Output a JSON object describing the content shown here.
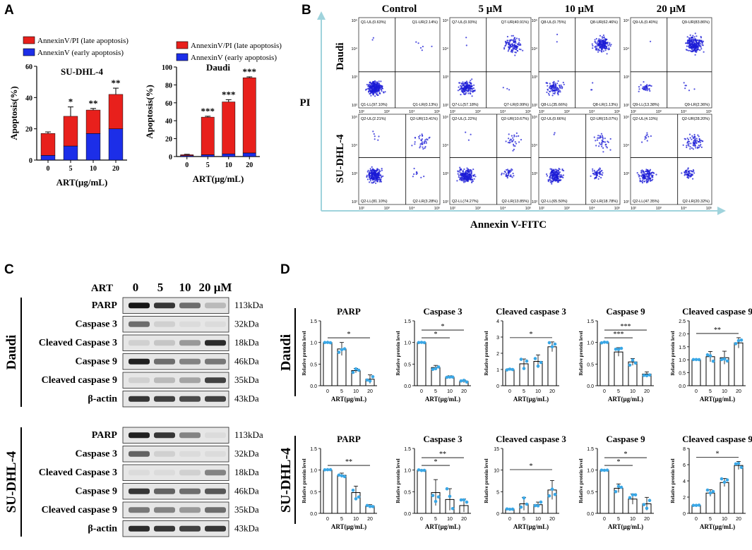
{
  "panels": {
    "A": "A",
    "B": "B",
    "C": "C",
    "D": "D"
  },
  "panel_a": {
    "legend_late": "AnnexinV/PI (late apoptosis)",
    "legend_early": "AnnexinV (early apoptosis)",
    "colors": {
      "late": "#e8201c",
      "early": "#1c2ee8"
    },
    "chart_data": [
      {
        "type": "bar",
        "stacked": true,
        "title": "SU-DHL-4",
        "xlabel": "ART(μg/mL)",
        "ylabel": "Apoptosis(%)",
        "categories": [
          "0",
          "5",
          "10",
          "20"
        ],
        "ylim": [
          0,
          60
        ],
        "yticks": [
          "0",
          "20",
          "40",
          "60"
        ],
        "series": [
          {
            "name": "AnnexinV (early apoptosis)",
            "values": [
              3,
              9,
              17,
              20
            ]
          },
          {
            "name": "AnnexinV/PI (late apoptosis)",
            "values": [
              14,
              19,
              15,
              22
            ]
          }
        ],
        "totals": [
          17,
          28,
          32,
          42
        ],
        "errors": [
          1,
          6,
          1,
          4
        ],
        "significance": [
          "",
          "*",
          "**",
          "**"
        ]
      },
      {
        "type": "bar",
        "stacked": true,
        "title": "Daudi",
        "xlabel": "ART(μg/mL)",
        "ylabel": "Apoptosis(%)",
        "categories": [
          "0",
          "5",
          "10",
          "20"
        ],
        "ylim": [
          0,
          100
        ],
        "yticks": [
          "0",
          "20",
          "40",
          "60",
          "80",
          "100"
        ],
        "series": [
          {
            "name": "AnnexinV (early apoptosis)",
            "values": [
              1,
              2,
              3,
              4
            ]
          },
          {
            "name": "AnnexinV/PI (late apoptosis)",
            "values": [
              1,
              42,
              58,
              84
            ]
          }
        ],
        "totals": [
          2,
          44,
          61,
          88
        ],
        "errors": [
          0.5,
          1,
          2.5,
          1
        ],
        "significance": [
          "",
          "***",
          "***",
          "***"
        ]
      }
    ]
  },
  "panel_b": {
    "columns": [
      "Control",
      "5 μM",
      "10 μM",
      "20 μM"
    ],
    "rows": [
      "Daudi",
      "SU-DHL-4"
    ],
    "y_axis": "PI",
    "x_axis": "Annexin V-FITC",
    "quadrants": [
      [
        {
          "ul": "Q1-UL(0.63%)",
          "ur": "Q1-UR(2.14%)",
          "ll": "Q1-LL(97.10%)",
          "lr": "Q1-LR(0.13%)"
        },
        {
          "ul": "Q7-UL(0.93%)",
          "ur": "Q7-UR(40.91%)",
          "ll": "Q7-LL(57.18%)",
          "lr": "Q7-LR(0.99%)"
        },
        {
          "ul": "Q8-UL(0.75%)",
          "ur": "Q8-UR(62.46%)",
          "ll": "Q8-LL(35.66%)",
          "lr": "Q8-LR(1.13%)"
        },
        {
          "ul": "Q9-UL(0.40%)",
          "ur": "Q9-UR(83.86%)",
          "ll": "Q9-LL(13.38%)",
          "lr": "Q9-LR(2.36%)"
        }
      ],
      [
        {
          "ul": "Q2-UL(2.21%)",
          "ur": "Q2-UR(13.41%)",
          "ll": "Q2-LL(81.10%)",
          "lr": "Q2-LR(3.28%)"
        },
        {
          "ul": "Q2-UL(1.22%)",
          "ur": "Q2-UR(10.67%)",
          "ll": "Q2-LL(74.27%)",
          "lr": "Q2-LR(13.85%)"
        },
        {
          "ul": "Q2-UL(0.66%)",
          "ur": "Q2-UR(15.07%)",
          "ll": "Q2-LL(65.50%)",
          "lr": "Q2-LR(18.78%)"
        },
        {
          "ul": "Q2-UL(4.13%)",
          "ur": "Q2-UR(28.20%)",
          "ll": "Q2-LL(47.35%)",
          "lr": "Q2-LR(20.32%)"
        }
      ]
    ],
    "tick_labels": {
      "y": [
        "10⁵",
        "10⁴",
        "10³",
        "10²"
      ],
      "x": [
        "10²",
        "10³",
        "10⁴",
        "10⁵"
      ]
    }
  },
  "panel_c": {
    "treatment_label": "ART",
    "lanes": [
      "0",
      "5",
      "10",
      "20 μM"
    ],
    "groups": [
      {
        "name": "Daudi",
        "proteins": [
          "PARP",
          "Caspase 3",
          "Cleaved Caspase 3",
          "Caspase 9",
          "Cleaved caspase 9",
          "β-actin"
        ],
        "kda": [
          "113kDa",
          "32kDa",
          "18kDa",
          "46kDa",
          "35kDa",
          "43kDa"
        ]
      },
      {
        "name": "SU-DHL-4",
        "proteins": [
          "PARP",
          "Caspase 3",
          "Cleaved Caspase 3",
          "Caspase 9",
          "Cleaved caspase 9",
          "β-actin"
        ],
        "kda": [
          "113kDa",
          "32kDa",
          "18kDa",
          "46kDa",
          "35kDa",
          "43kDa"
        ]
      }
    ],
    "band_intensity": [
      [
        [
          0.95,
          0.8,
          0.55,
          0.2
        ],
        [
          0.55,
          0.1,
          0.05,
          0.05
        ],
        [
          0.1,
          0.15,
          0.35,
          0.85
        ],
        [
          0.9,
          0.55,
          0.45,
          0.5
        ],
        [
          0.1,
          0.2,
          0.3,
          0.75
        ],
        [
          0.8,
          0.75,
          0.7,
          0.75
        ]
      ],
      [
        [
          0.9,
          0.8,
          0.45,
          0.05
        ],
        [
          0.6,
          0.1,
          0.05,
          0.05
        ],
        [
          0.05,
          0.05,
          0.1,
          0.45
        ],
        [
          0.8,
          0.6,
          0.55,
          0.65
        ],
        [
          0.5,
          0.45,
          0.35,
          0.55
        ],
        [
          0.85,
          0.8,
          0.75,
          0.8
        ]
      ]
    ]
  },
  "panel_d": {
    "row_labels": [
      "Daudi",
      "SU-DHL-4"
    ],
    "ylabel": "Relative protein level",
    "xlabel": "ART(μg/mL)",
    "chart_data": [
      {
        "type": "bar",
        "row": "Daudi",
        "title": "PARP",
        "categories": [
          "0",
          "5",
          "10",
          "20"
        ],
        "values": [
          1.0,
          0.85,
          0.35,
          0.15
        ],
        "errors": [
          0.01,
          0.15,
          0.05,
          0.1
        ],
        "ylim": [
          0,
          1.5
        ],
        "yticks": [
          "0.0",
          "0.5",
          "1.0",
          "1.5"
        ],
        "sig": [
          {
            "from": 0,
            "to": 3,
            "label": "*"
          }
        ]
      },
      {
        "type": "bar",
        "row": "Daudi",
        "title": "Caspase 3",
        "categories": [
          "0",
          "5",
          "10",
          "20"
        ],
        "values": [
          1.0,
          0.42,
          0.2,
          0.1
        ],
        "errors": [
          0.01,
          0.05,
          0.03,
          0.03
        ],
        "ylim": [
          0,
          1.5
        ],
        "yticks": [
          "0.0",
          "0.5",
          "1.0",
          "1.5"
        ],
        "sig": [
          {
            "from": 0,
            "to": 2,
            "label": "*"
          },
          {
            "from": 0,
            "to": 3,
            "label": "*"
          }
        ]
      },
      {
        "type": "bar",
        "row": "Daudi",
        "title": "Cleaved caspase 3",
        "categories": [
          "0",
          "5",
          "10",
          "20"
        ],
        "values": [
          1.0,
          1.35,
          1.5,
          2.4
        ],
        "errors": [
          0.05,
          0.3,
          0.4,
          0.3
        ],
        "ylim": [
          0,
          4
        ],
        "yticks": [
          "0",
          "1",
          "2",
          "3",
          "4"
        ],
        "sig": [
          {
            "from": 0,
            "to": 3,
            "label": "*"
          }
        ]
      },
      {
        "type": "bar",
        "row": "Daudi",
        "title": "Caspase 9",
        "categories": [
          "0",
          "5",
          "10",
          "20"
        ],
        "values": [
          1.0,
          0.78,
          0.55,
          0.27
        ],
        "errors": [
          0.01,
          0.1,
          0.08,
          0.05
        ],
        "ylim": [
          0,
          1.5
        ],
        "yticks": [
          "0.0",
          "0.5",
          "1.0",
          "1.5"
        ],
        "sig": [
          {
            "from": 0,
            "to": 2,
            "label": "***"
          },
          {
            "from": 0,
            "to": 3,
            "label": "***"
          }
        ]
      },
      {
        "type": "bar",
        "row": "Daudi",
        "title": "Cleaved caspase 9",
        "categories": [
          "0",
          "5",
          "10",
          "20"
        ],
        "values": [
          1.0,
          1.12,
          1.08,
          1.65
        ],
        "errors": [
          0.01,
          0.2,
          0.25,
          0.2
        ],
        "ylim": [
          0,
          2.5
        ],
        "yticks": [
          "0.0",
          "0.5",
          "1.0",
          "1.5",
          "2.0",
          "2.5"
        ],
        "sig": [
          {
            "from": 0,
            "to": 3,
            "label": "**"
          }
        ]
      },
      {
        "type": "bar",
        "row": "SU-DHL-4",
        "title": "PARP",
        "categories": [
          "0",
          "5",
          "10",
          "20"
        ],
        "values": [
          1.0,
          0.88,
          0.48,
          0.17
        ],
        "errors": [
          0.01,
          0.05,
          0.15,
          0.03
        ],
        "ylim": [
          0,
          1.5
        ],
        "yticks": [
          "0.0",
          "0.5",
          "1.0",
          "1.5"
        ],
        "sig": [
          {
            "from": 0,
            "to": 3,
            "label": "**"
          }
        ]
      },
      {
        "type": "bar",
        "row": "SU-DHL-4",
        "title": "Caspase 3",
        "categories": [
          "0",
          "5",
          "10",
          "20"
        ],
        "values": [
          1.0,
          0.48,
          0.32,
          0.18
        ],
        "errors": [
          0.01,
          0.3,
          0.25,
          0.15
        ],
        "ylim": [
          0,
          1.5
        ],
        "yticks": [
          "0.0",
          "0.5",
          "1.0",
          "1.5"
        ],
        "sig": [
          {
            "from": 0,
            "to": 2,
            "label": "*"
          },
          {
            "from": 0,
            "to": 3,
            "label": "**"
          }
        ]
      },
      {
        "type": "bar",
        "row": "SU-DHL-4",
        "title": "Cleaved caspase 3",
        "categories": [
          "0",
          "5",
          "10",
          "20"
        ],
        "values": [
          1.0,
          2.2,
          2.0,
          5.4
        ],
        "errors": [
          0.1,
          1.5,
          0.6,
          2.2
        ],
        "ylim": [
          0,
          15
        ],
        "yticks": [
          "0",
          "5",
          "10",
          "15"
        ],
        "sig": [
          {
            "from": 0,
            "to": 3,
            "label": "*"
          }
        ]
      },
      {
        "type": "bar",
        "row": "SU-DHL-4",
        "title": "Caspase 9",
        "categories": [
          "0",
          "5",
          "10",
          "20"
        ],
        "values": [
          1.0,
          0.58,
          0.33,
          0.22
        ],
        "errors": [
          0.01,
          0.1,
          0.12,
          0.15
        ],
        "ylim": [
          0,
          1.5
        ],
        "yticks": [
          "0.0",
          "0.5",
          "1.0",
          "1.5"
        ],
        "sig": [
          {
            "from": 0,
            "to": 2,
            "label": "*"
          },
          {
            "from": 0,
            "to": 3,
            "label": "*"
          }
        ]
      },
      {
        "type": "bar",
        "row": "SU-DHL-4",
        "title": "Cleaved caspase 9",
        "categories": [
          "0",
          "5",
          "10",
          "20"
        ],
        "values": [
          1.0,
          2.5,
          3.8,
          5.9
        ],
        "errors": [
          0.05,
          0.4,
          0.5,
          0.5
        ],
        "ylim": [
          0,
          8
        ],
        "yticks": [
          "0",
          "2",
          "4",
          "6",
          "8"
        ],
        "sig": [
          {
            "from": 0,
            "to": 3,
            "label": "*"
          }
        ]
      }
    ]
  }
}
